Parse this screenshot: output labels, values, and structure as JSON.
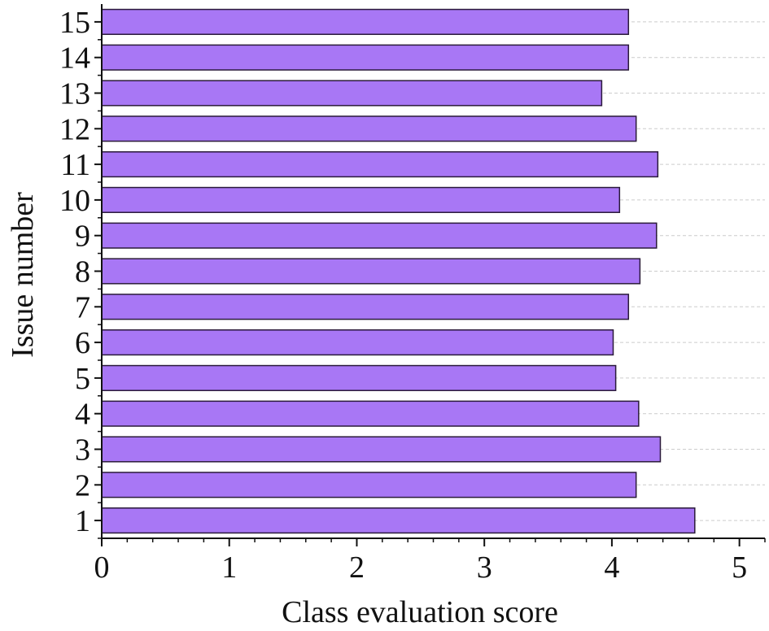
{
  "chart_data": {
    "type": "bar",
    "orientation": "horizontal",
    "categories": [
      "1",
      "2",
      "3",
      "4",
      "5",
      "6",
      "7",
      "8",
      "9",
      "10",
      "11",
      "12",
      "13",
      "14",
      "15"
    ],
    "values": [
      4.65,
      4.19,
      4.38,
      4.21,
      4.03,
      4.01,
      4.13,
      4.22,
      4.35,
      4.06,
      4.36,
      4.19,
      3.92,
      4.13,
      4.13
    ],
    "xlabel": "Class evaluation score",
    "ylabel": "Issue number",
    "xlim": [
      0,
      5.2
    ],
    "xticks": [
      0,
      1,
      2,
      3,
      4,
      5
    ],
    "grid": "horizontal dashed",
    "colors": {
      "bar_fill": "#a877f5",
      "bar_edge": "#2a1a3a",
      "grid": "#cccccc",
      "axis": "#111111"
    }
  }
}
